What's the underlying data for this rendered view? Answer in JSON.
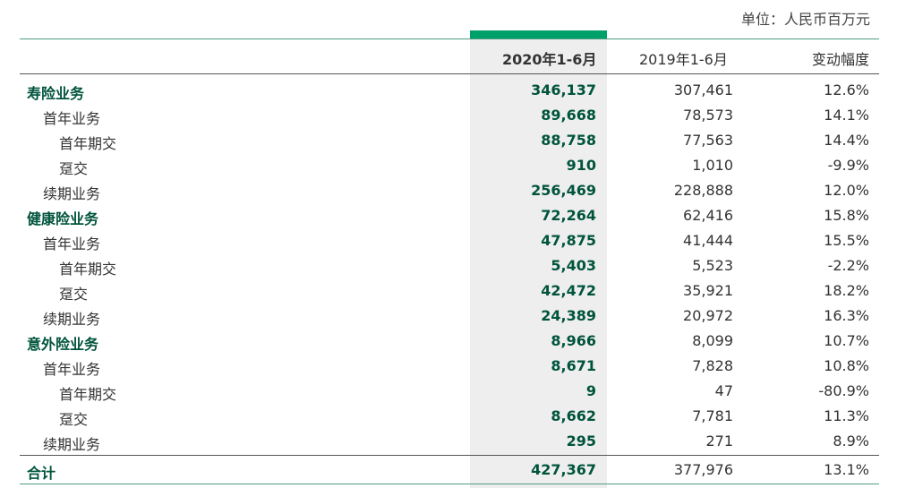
{
  "unit_label": "单位：人民币百万元",
  "headers": {
    "current": "2020年1-6月",
    "previous": "2019年1-6月",
    "change": "变动幅度"
  },
  "rows": [
    {
      "label": "寿险业务",
      "level": 0,
      "current": "346,137",
      "previous": "307,461",
      "change": "12.6%"
    },
    {
      "label": "首年业务",
      "level": 1,
      "current": "89,668",
      "previous": "78,573",
      "change": "14.1%"
    },
    {
      "label": "首年期交",
      "level": 2,
      "current": "88,758",
      "previous": "77,563",
      "change": "14.4%"
    },
    {
      "label": "趸交",
      "level": 2,
      "current": "910",
      "previous": "1,010",
      "change": "-9.9%"
    },
    {
      "label": "续期业务",
      "level": 1,
      "current": "256,469",
      "previous": "228,888",
      "change": "12.0%"
    },
    {
      "label": "健康险业务",
      "level": 0,
      "current": "72,264",
      "previous": "62,416",
      "change": "15.8%"
    },
    {
      "label": "首年业务",
      "level": 1,
      "current": "47,875",
      "previous": "41,444",
      "change": "15.5%"
    },
    {
      "label": "首年期交",
      "level": 2,
      "current": "5,403",
      "previous": "5,523",
      "change": "-2.2%"
    },
    {
      "label": "趸交",
      "level": 2,
      "current": "42,472",
      "previous": "35,921",
      "change": "18.2%"
    },
    {
      "label": "续期业务",
      "level": 1,
      "current": "24,389",
      "previous": "20,972",
      "change": "16.3%"
    },
    {
      "label": "意外险业务",
      "level": 0,
      "current": "8,966",
      "previous": "8,099",
      "change": "10.7%"
    },
    {
      "label": "首年业务",
      "level": 1,
      "current": "8,671",
      "previous": "7,828",
      "change": "10.8%"
    },
    {
      "label": "首年期交",
      "level": 2,
      "current": "9",
      "previous": "47",
      "change": "-80.9%"
    },
    {
      "label": "趸交",
      "level": 2,
      "current": "8,662",
      "previous": "7,781",
      "change": "11.3%"
    },
    {
      "label": "续期业务",
      "level": 1,
      "current": "295",
      "previous": "271",
      "change": "8.9%"
    }
  ],
  "total": {
    "label": "合计",
    "current": "427,367",
    "previous": "377,976",
    "change": "13.1%"
  }
}
